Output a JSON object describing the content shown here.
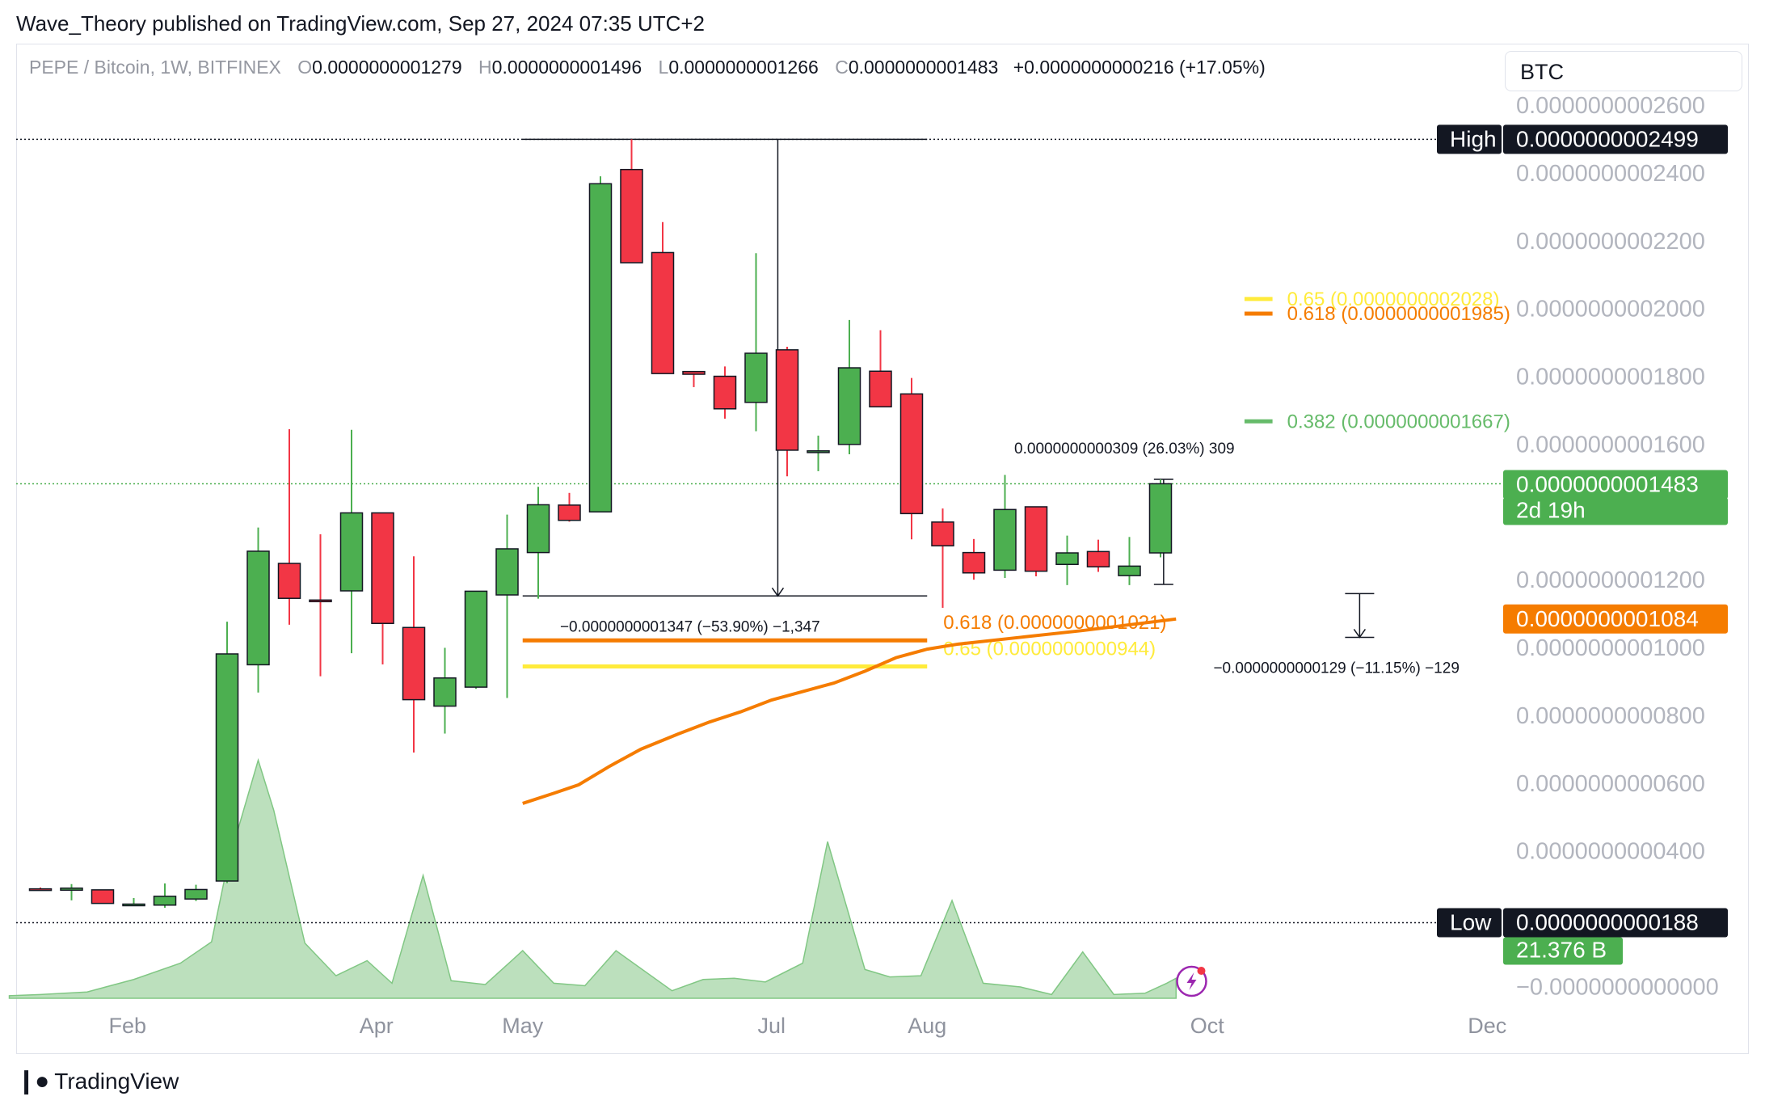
{
  "header": {
    "published": "Wave_Theory published on TradingView.com, Sep 27, 2024 07:35 UTC+2"
  },
  "legend": {
    "symbol": "PEPE / Bitcoin, 1W, BITFINEX",
    "o_label": "O",
    "o_value": "0.0000000001279",
    "h_label": "H",
    "h_value": "0.0000000001496",
    "l_label": "L",
    "l_value": "0.0000000001266",
    "c_label": "C",
    "c_value": "0.0000000001483",
    "change": "+0.0000000000216 (+17.05%)"
  },
  "currency": "BTC",
  "colors": {
    "up": "#4caf50",
    "down": "#f23645",
    "ema": "#f57c00",
    "fib618": "#f57c00",
    "fib65": "#ffeb3b",
    "fib382": "#66bb6a",
    "volume": "#a5d6a7",
    "grid": "#e0e3eb",
    "axis_text": "#b2b5be"
  },
  "footer": {
    "brand": "TradingView"
  },
  "chart_data": {
    "type": "candlestick",
    "title": "PEPE / Bitcoin, 1W, BITFINEX",
    "x_tick_labels": [
      "Feb",
      "Apr",
      "May",
      "Jul",
      "Aug",
      "Oct",
      "Dec"
    ],
    "y_tick_labels": [
      "0.0000000002600",
      "0.0000000002400",
      "0.0000000002200",
      "0.0000000002000",
      "0.0000000001800",
      "0.0000000001600",
      "0.0000000001200",
      "0.0000000001000",
      "0.0000000000800",
      "0.0000000000600",
      "0.0000000000400",
      "−0.0000000000000"
    ],
    "y_ticks": [
      260,
      240,
      220,
      200,
      180,
      160,
      120,
      100,
      80,
      60,
      40,
      0
    ],
    "y_unit": "1e-12 BTC",
    "ylim": [
      -3,
      272
    ],
    "x_tick_weeks": [
      2.8,
      10.8,
      15.5,
      23.5,
      28.5,
      37.5,
      46.5
    ],
    "candles": [
      {
        "w": 0,
        "o": 28.8,
        "h": 29.2,
        "l": 28.4,
        "c": 28.6
      },
      {
        "w": 1,
        "o": 28.4,
        "h": 30.2,
        "l": 25.4,
        "c": 29.0
      },
      {
        "w": 2,
        "o": 28.5,
        "h": 28.5,
        "l": 24.5,
        "c": 24.5
      },
      {
        "w": 3,
        "o": 24.3,
        "h": 26.1,
        "l": 23.8,
        "c": 24.3
      },
      {
        "w": 4,
        "o": 24.0,
        "h": 30.4,
        "l": 23.2,
        "c": 26.6
      },
      {
        "w": 5,
        "o": 25.8,
        "h": 30.0,
        "l": 25.2,
        "c": 28.6
      },
      {
        "w": 6,
        "o": 31.1,
        "h": 107.6,
        "l": 30.5,
        "c": 98.1
      },
      {
        "w": 7,
        "o": 94.9,
        "h": 135.4,
        "l": 86.7,
        "c": 128.4
      },
      {
        "w": 8,
        "o": 124.8,
        "h": 164.4,
        "l": 106.7,
        "c": 114.5
      },
      {
        "w": 9,
        "o": 114.0,
        "h": 133.4,
        "l": 91.5,
        "c": 113.9
      },
      {
        "w": 10,
        "o": 116.7,
        "h": 164.2,
        "l": 98.3,
        "c": 139.7
      },
      {
        "w": 11,
        "o": 139.7,
        "h": 139.7,
        "l": 95.0,
        "c": 107.1
      },
      {
        "w": 12,
        "o": 105.9,
        "h": 126.9,
        "l": 69.0,
        "c": 84.6
      },
      {
        "w": 13,
        "o": 82.7,
        "h": 99.9,
        "l": 74.6,
        "c": 91.0
      },
      {
        "w": 14,
        "o": 88.3,
        "h": 116.6,
        "l": 87.8,
        "c": 116.6
      },
      {
        "w": 15,
        "o": 115.5,
        "h": 139.2,
        "l": 85.1,
        "c": 129.1
      },
      {
        "w": 16,
        "o": 128.0,
        "h": 147.4,
        "l": 114.4,
        "c": 142.1
      },
      {
        "w": 17,
        "o": 142.0,
        "h": 145.6,
        "l": 137.1,
        "c": 137.5
      },
      {
        "w": 18,
        "o": 140.0,
        "h": 239.0,
        "l": 140.0,
        "c": 236.8
      },
      {
        "w": 19,
        "o": 241.0,
        "h": 249.9,
        "l": 216.0,
        "c": 213.5
      },
      {
        "w": 20,
        "o": 216.5,
        "h": 225.5,
        "l": 183.5,
        "c": 180.8
      },
      {
        "w": 21,
        "o": 181.4,
        "h": 181.4,
        "l": 176.8,
        "c": 180.6
      },
      {
        "w": 22,
        "o": 180.0,
        "h": 182.9,
        "l": 167.5,
        "c": 170.4
      },
      {
        "w": 23,
        "o": 172.3,
        "h": 216.3,
        "l": 163.8,
        "c": 186.8
      },
      {
        "w": 24,
        "o": 187.8,
        "h": 188.7,
        "l": 150.5,
        "c": 158.2
      },
      {
        "w": 25,
        "o": 157.5,
        "h": 162.5,
        "l": 152.0,
        "c": 158.0
      },
      {
        "w": 26,
        "o": 159.9,
        "h": 196.6,
        "l": 157.0,
        "c": 182.5
      },
      {
        "w": 27,
        "o": 181.5,
        "h": 193.6,
        "l": 172.0,
        "c": 171.0
      },
      {
        "w": 28,
        "o": 174.8,
        "h": 179.5,
        "l": 131.9,
        "c": 139.5
      },
      {
        "w": 29,
        "o": 137.0,
        "h": 141.0,
        "l": 111.7,
        "c": 130.0
      },
      {
        "w": 30,
        "o": 128.0,
        "h": 132.0,
        "l": 120.0,
        "c": 122.0
      },
      {
        "w": 31,
        "o": 122.8,
        "h": 150.9,
        "l": 120.5,
        "c": 140.7
      },
      {
        "w": 32,
        "o": 141.5,
        "h": 141.5,
        "l": 121.0,
        "c": 122.5
      },
      {
        "w": 33,
        "o": 124.5,
        "h": 133.0,
        "l": 118.4,
        "c": 127.9
      },
      {
        "w": 34,
        "o": 128.3,
        "h": 131.8,
        "l": 122.3,
        "c": 123.8
      },
      {
        "w": 35,
        "o": 121.2,
        "h": 132.6,
        "l": 118.4,
        "c": 124.0
      },
      {
        "w": 36,
        "o": 127.9,
        "h": 149.6,
        "l": 126.6,
        "c": 148.3
      }
    ],
    "volume": [
      {
        "w": -1,
        "v": 0.2
      },
      {
        "w": 0,
        "v": 0.3
      },
      {
        "w": 1.5,
        "v": 0.5
      },
      {
        "w": 3,
        "v": 1.5
      },
      {
        "w": 4.5,
        "v": 2.8
      },
      {
        "w": 5.5,
        "v": 4.5
      },
      {
        "w": 6,
        "v": 10.5
      },
      {
        "w": 7,
        "v": 19.0
      },
      {
        "w": 7.5,
        "v": 15.0
      },
      {
        "w": 8.5,
        "v": 4.4
      },
      {
        "w": 9.5,
        "v": 1.8
      },
      {
        "w": 10.5,
        "v": 3.0
      },
      {
        "w": 11.3,
        "v": 1.2
      },
      {
        "w": 12.3,
        "v": 9.8
      },
      {
        "w": 13.2,
        "v": 1.4
      },
      {
        "w": 14.3,
        "v": 1.1
      },
      {
        "w": 15.5,
        "v": 3.8
      },
      {
        "w": 16.5,
        "v": 1.2
      },
      {
        "w": 17.5,
        "v": 1.0
      },
      {
        "w": 18.5,
        "v": 3.8
      },
      {
        "w": 20.3,
        "v": 0.6
      },
      {
        "w": 21.3,
        "v": 1.5
      },
      {
        "w": 22.3,
        "v": 1.6
      },
      {
        "w": 23.3,
        "v": 1.3
      },
      {
        "w": 24.5,
        "v": 2.8
      },
      {
        "w": 25.3,
        "v": 12.5
      },
      {
        "w": 26.5,
        "v": 2.3
      },
      {
        "w": 27.3,
        "v": 1.7
      },
      {
        "w": 28.3,
        "v": 1.8
      },
      {
        "w": 29.3,
        "v": 7.8
      },
      {
        "w": 30.3,
        "v": 1.2
      },
      {
        "w": 31.5,
        "v": 0.9
      },
      {
        "w": 32.5,
        "v": 0.3
      },
      {
        "w": 33.5,
        "v": 3.7
      },
      {
        "w": 34.5,
        "v": 0.3
      },
      {
        "w": 35.5,
        "v": 0.4
      },
      {
        "w": 36.2,
        "v": 1.2
      },
      {
        "w": 36.5,
        "v": 1.6
      }
    ],
    "ema": [
      [
        15.5,
        54.0
      ],
      [
        16.5,
        57.0
      ],
      [
        17.3,
        59.5
      ],
      [
        18.3,
        65.0
      ],
      [
        19.3,
        70.0
      ],
      [
        20.5,
        74.5
      ],
      [
        21.5,
        78.0
      ],
      [
        22.5,
        81.0
      ],
      [
        23.5,
        84.5
      ],
      [
        24.5,
        87.0
      ],
      [
        25.5,
        89.5
      ],
      [
        26.5,
        93.0
      ],
      [
        27.5,
        97.0
      ],
      [
        28.5,
        99.5
      ],
      [
        29.5,
        101.0
      ],
      [
        31.5,
        103.0
      ],
      [
        33.5,
        105.0
      ],
      [
        36.5,
        108.4
      ]
    ],
    "high_level": 249.9,
    "low_level": 18.8,
    "fib_lines": [
      {
        "label": "0.618 (0.0000000001021)",
        "value": 102.1,
        "color": "#f57c00",
        "from_week": 15.5,
        "to_week": 28.5
      },
      {
        "label": "0.65 (0.0000000000944)",
        "value": 94.4,
        "color": "#ffeb3b",
        "from_week": 15.5,
        "to_week": 28.5
      },
      {
        "label": "0.65 (0.0000000002028)",
        "value": 202.8,
        "color": "#ffeb3b",
        "from_week": 38.7,
        "to_week": 39.6
      },
      {
        "label": "0.618 (0.0000000001985)",
        "value": 198.5,
        "color": "#f57c00",
        "from_week": 38.7,
        "to_week": 39.6
      },
      {
        "label": "0.382 (0.0000000001667)",
        "value": 166.7,
        "color": "#66bb6a",
        "from_week": 38.7,
        "to_week": 39.6
      }
    ],
    "measure_1": {
      "label": "−0.0000000001347 (−53.90%) −1,347",
      "top": 249.9,
      "bottom": 115.2,
      "from_week": 15.5,
      "to_week": 28.5
    },
    "measure_2": {
      "label": "0.0000000000309 (26.03%) 309",
      "top": 149.6,
      "bottom": 118.6
    },
    "measure_3": {
      "label": "−0.0000000000129 (−11.15%) −129",
      "top": 115.9,
      "bottom": 103.0
    },
    "price_tags": {
      "high_label": "High",
      "high_value": "0.0000000002499",
      "current_value": "0.0000000001483",
      "countdown": "2d 19h",
      "ema_value": "0.0000000001084",
      "low_label": "Low",
      "low_value": "0.0000000000188",
      "volume_value": "21.376 B"
    }
  }
}
